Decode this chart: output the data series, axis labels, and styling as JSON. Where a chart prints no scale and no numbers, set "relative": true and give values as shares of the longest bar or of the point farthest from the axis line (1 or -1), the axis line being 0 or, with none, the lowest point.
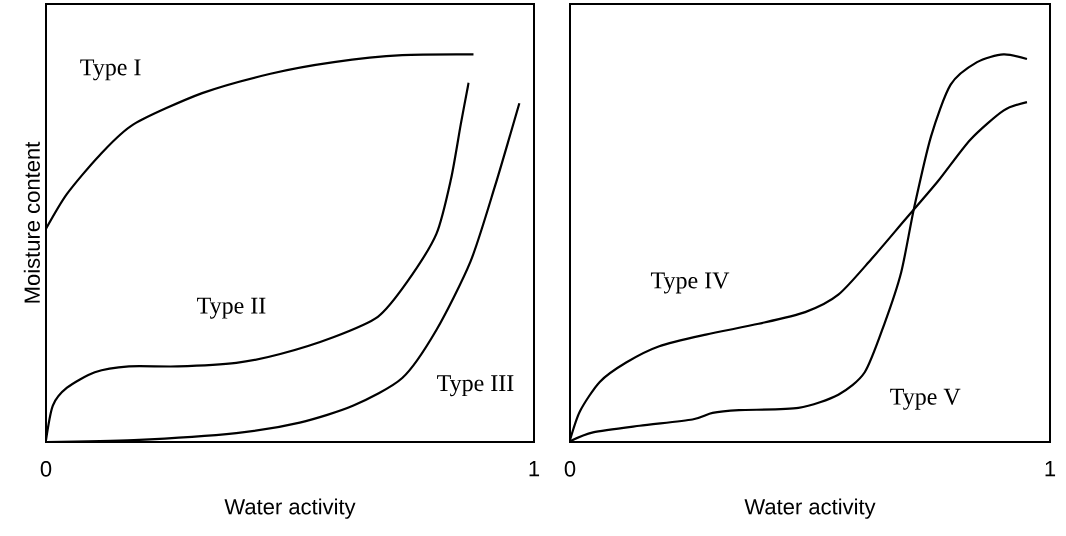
{
  "chart_data": [
    {
      "type": "line",
      "relative": true,
      "xlabel": "Water activity",
      "ylabel": "Moisture content",
      "xlim": [
        0,
        1
      ],
      "xticks": [
        0,
        1
      ],
      "marker": "none",
      "line_style": "solid",
      "series": [
        {
          "name": "Type I",
          "color": "#000000",
          "x": [
            0,
            0.043,
            0.11,
            0.18,
            0.32,
            0.46,
            0.59,
            0.73,
            0.876
          ],
          "values": [
            0.55,
            0.64,
            0.74,
            0.82,
            0.9,
            0.95,
            0.98,
            0.998,
            1
          ]
        },
        {
          "name": "Type II",
          "color": "#000000",
          "x": [
            0,
            0.014,
            0.043,
            0.1,
            0.17,
            0.27,
            0.39,
            0.48,
            0.59,
            0.68,
            0.74,
            0.8,
            0.83,
            0.85,
            0.866
          ],
          "values": [
            0.005,
            0.094,
            0.14,
            0.18,
            0.195,
            0.195,
            0.204,
            0.227,
            0.271,
            0.323,
            0.413,
            0.537,
            0.679,
            0.82,
            0.927
          ]
        },
        {
          "name": "Type III",
          "color": "#000000",
          "x": [
            0,
            0.18,
            0.39,
            0.52,
            0.63,
            0.73,
            0.8,
            0.87,
            0.92,
            0.97
          ],
          "values": [
            0,
            0.005,
            0.023,
            0.05,
            0.094,
            0.165,
            0.289,
            0.466,
            0.66,
            0.874
          ]
        }
      ]
    },
    {
      "type": "line",
      "relative": true,
      "xlabel": "Water activity",
      "xlim": [
        0,
        1
      ],
      "xticks": [
        0,
        1
      ],
      "marker": "none",
      "line_style": "solid",
      "series": [
        {
          "name": "Type IV",
          "color": "#000000",
          "x": [
            0,
            0.021,
            0.062,
            0.117,
            0.186,
            0.283,
            0.393,
            0.49,
            0.559,
            0.628,
            0.697,
            0.766,
            0.834,
            0.903,
            0.952
          ],
          "values": [
            0.005,
            0.08,
            0.155,
            0.205,
            0.247,
            0.277,
            0.305,
            0.335,
            0.38,
            0.472,
            0.572,
            0.672,
            0.78,
            0.855,
            0.877
          ]
        },
        {
          "name": "Type V",
          "color": "#000000",
          "x": [
            0,
            0.048,
            0.145,
            0.255,
            0.297,
            0.352,
            0.476,
            0.559,
            0.614,
            0.655,
            0.69,
            0.717,
            0.752,
            0.793,
            0.848,
            0.903,
            0.952
          ],
          "values": [
            0.002,
            0.025,
            0.042,
            0.058,
            0.075,
            0.082,
            0.088,
            0.122,
            0.18,
            0.305,
            0.438,
            0.605,
            0.788,
            0.922,
            0.98,
            1,
            0.988
          ]
        }
      ]
    }
  ]
}
